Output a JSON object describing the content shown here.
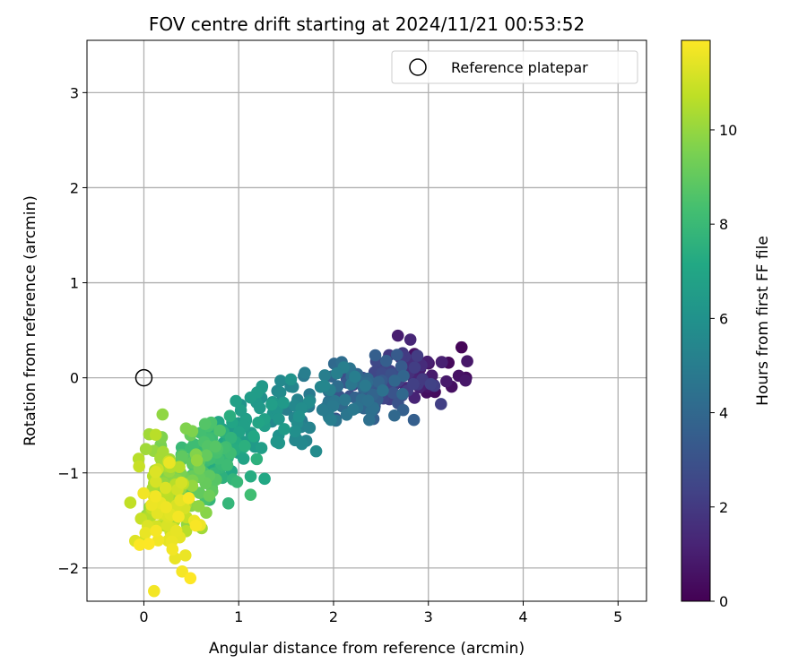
{
  "chart_data": {
    "type": "scatter",
    "title": "FOV centre drift starting at 2024/11/21 00:53:52",
    "xlabel": "Angular distance from reference (arcmin)",
    "ylabel": "Rotation from reference (arcmin)",
    "xlim": [
      -0.6,
      5.3
    ],
    "ylim": [
      -2.35,
      3.55
    ],
    "x_ticks": [
      0,
      1,
      2,
      3,
      4,
      5
    ],
    "y_ticks": [
      -2,
      -1,
      0,
      1,
      2,
      3
    ],
    "grid": true,
    "legend": {
      "placement": "top-right",
      "entries": [
        "Reference platepar"
      ]
    },
    "reference_point": {
      "name": "Reference platepar",
      "x": 0,
      "y": 0,
      "marker": "open-circle",
      "color": "#000000"
    },
    "colorbar": {
      "label": "Hours from first FF file",
      "range": [
        0,
        11.9
      ],
      "ticks": [
        0,
        2,
        4,
        6,
        8,
        10
      ],
      "colormap": "viridis"
    },
    "points_generator": {
      "count": 480,
      "note_anchors_hours_to_xy": [
        [
          0.0,
          3.2,
          -0.1
        ],
        [
          0.5,
          3.1,
          0.0
        ],
        [
          1.0,
          2.85,
          0.05
        ],
        [
          2.0,
          2.6,
          0.0
        ],
        [
          3.0,
          2.45,
          -0.1
        ],
        [
          4.0,
          2.3,
          -0.15
        ],
        [
          4.5,
          2.1,
          -0.2
        ],
        [
          5.0,
          1.85,
          -0.3
        ],
        [
          5.5,
          1.6,
          -0.35
        ],
        [
          6.0,
          1.4,
          -0.4
        ],
        [
          6.5,
          1.2,
          -0.5
        ],
        [
          7.0,
          1.05,
          -0.6
        ],
        [
          7.5,
          0.9,
          -0.75
        ],
        [
          8.0,
          0.75,
          -0.85
        ],
        [
          8.5,
          0.6,
          -0.9
        ],
        [
          9.0,
          0.5,
          -1.0
        ],
        [
          9.5,
          0.4,
          -1.05
        ],
        [
          10.0,
          0.3,
          -1.1
        ],
        [
          10.5,
          0.22,
          -1.2
        ],
        [
          11.0,
          0.18,
          -1.35
        ],
        [
          11.5,
          0.22,
          -1.55
        ],
        [
          11.9,
          0.35,
          -1.75
        ]
      ]
    }
  }
}
